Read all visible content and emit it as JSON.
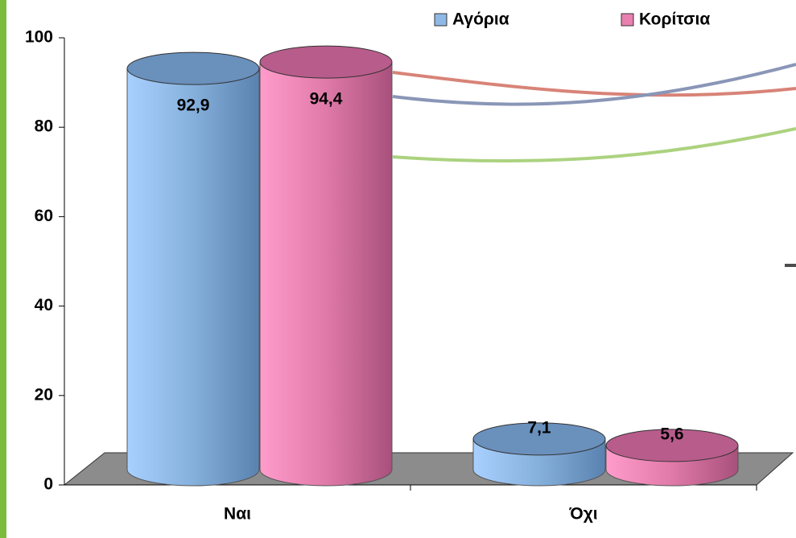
{
  "chart_data": {
    "type": "bar3d",
    "categories": [
      "Ναι",
      "Όχι"
    ],
    "series": [
      {
        "name": "Αγόρια",
        "color": "#8fb8e6",
        "values": [
          92.9,
          7.1
        ],
        "value_labels": [
          "92,9",
          "7,1"
        ]
      },
      {
        "name": "Κορίτσια",
        "color": "#e880b0",
        "values": [
          94.4,
          5.6
        ],
        "value_labels": [
          "94,4",
          "5,6"
        ]
      }
    ],
    "ylim": [
      0,
      100
    ],
    "yticks": [
      0,
      20,
      40,
      60,
      80,
      100
    ]
  }
}
